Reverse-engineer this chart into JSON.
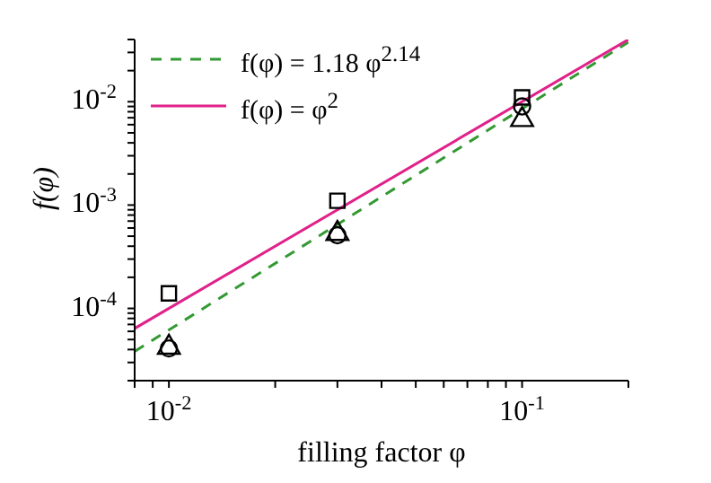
{
  "chart_data": {
    "type": "scatter",
    "xlabel": "filling factor φ",
    "ylabel": "f(φ)",
    "log": "xy",
    "legend": "top left",
    "xlim": [
      0.008,
      0.2
    ],
    "ylim": [
      2e-05,
      0.04
    ],
    "xticks": [
      {
        "value": 0.008,
        "label": null
      },
      {
        "value": 0.009,
        "label": null
      },
      {
        "value": 0.01,
        "label": "10$^{-2}$"
      },
      {
        "value": 0.02,
        "label": null
      },
      {
        "value": 0.03,
        "label": null
      },
      {
        "value": 0.04,
        "label": null
      },
      {
        "value": 0.05,
        "label": null
      },
      {
        "value": 0.06,
        "label": null
      },
      {
        "value": 0.07,
        "label": null
      },
      {
        "value": 0.08,
        "label": null
      },
      {
        "value": 0.09,
        "label": null
      },
      {
        "value": 0.1,
        "label": "10$^{-1}$"
      },
      {
        "value": 0.2,
        "label": null
      }
    ],
    "yticks": [
      {
        "value": 2e-05,
        "label": null
      },
      {
        "value": 3e-05,
        "label": null
      },
      {
        "value": 4e-05,
        "label": null
      },
      {
        "value": 5e-05,
        "label": null
      },
      {
        "value": 6e-05,
        "label": null
      },
      {
        "value": 7e-05,
        "label": null
      },
      {
        "value": 8e-05,
        "label": null
      },
      {
        "value": 9e-05,
        "label": null
      },
      {
        "value": 0.0001,
        "label": "10$^{-4}$"
      },
      {
        "value": 0.0002,
        "label": null
      },
      {
        "value": 0.0003,
        "label": null
      },
      {
        "value": 0.0004,
        "label": null
      },
      {
        "value": 0.0005,
        "label": null
      },
      {
        "value": 0.0006,
        "label": null
      },
      {
        "value": 0.0007,
        "label": null
      },
      {
        "value": 0.0008,
        "label": null
      },
      {
        "value": 0.0009,
        "label": null
      },
      {
        "value": 0.001,
        "label": "10$^{-3}$"
      },
      {
        "value": 0.002,
        "label": null
      },
      {
        "value": 0.003,
        "label": null
      },
      {
        "value": 0.004,
        "label": null
      },
      {
        "value": 0.005,
        "label": null
      },
      {
        "value": 0.006,
        "label": null
      },
      {
        "value": 0.007,
        "label": null
      },
      {
        "value": 0.008,
        "label": null
      },
      {
        "value": 0.009,
        "label": null
      },
      {
        "value": 0.01,
        "label": "10$^{-2}$"
      },
      {
        "value": 0.02,
        "label": null
      },
      {
        "value": 0.03,
        "label": null
      },
      {
        "value": 0.04,
        "label": null
      }
    ],
    "series": [
      {
        "type": "line",
        "name": "f(φ) = 1.18 φ$^{2.14}$",
        "color": "#339933",
        "line_style": "dashed",
        "marker": "none",
        "x": [
          0.008,
          0.2
        ],
        "values": [
          3.84e-05,
          0.0377
        ]
      },
      {
        "type": "line",
        "name": "f(φ) = φ$^{2}$",
        "color": "#e0218a",
        "line_style": "solid",
        "marker": "none",
        "x": [
          0.008,
          0.2
        ],
        "values": [
          6.4e-05,
          0.04
        ]
      },
      {
        "color": "#000000",
        "marker": "square",
        "x": [
          0.01,
          0.03,
          0.1
        ],
        "values": [
          0.00014,
          0.0011,
          0.011
        ]
      },
      {
        "color": "#000000",
        "marker": "circle",
        "x": [
          0.01,
          0.03,
          0.1
        ],
        "values": [
          4.1e-05,
          0.00051,
          0.009
        ]
      },
      {
        "color": "#000000",
        "marker": "triangle",
        "x": [
          0.01,
          0.03,
          0.1
        ],
        "values": [
          4.2e-05,
          0.00053,
          0.0067
        ]
      }
    ]
  }
}
